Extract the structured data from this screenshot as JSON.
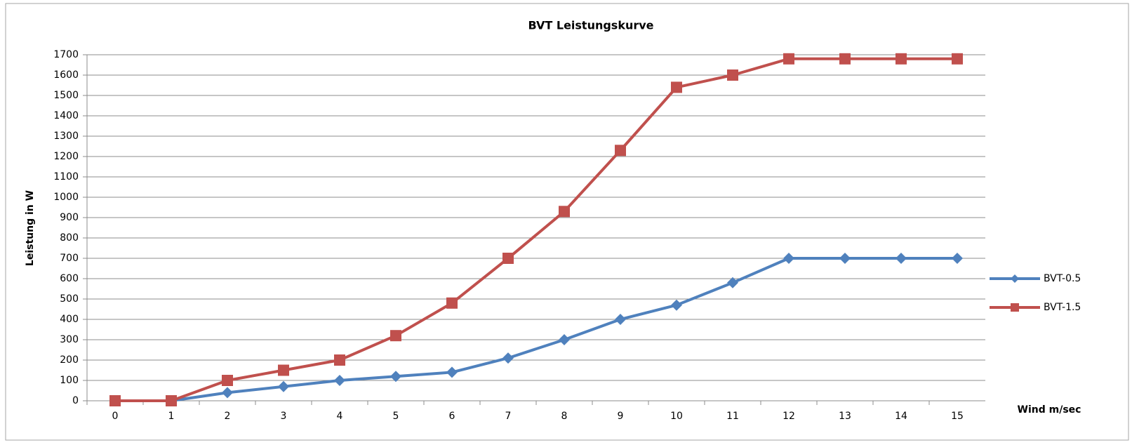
{
  "chart_data": {
    "type": "line",
    "title": "BVT Leistungskurve",
    "ylabel": "Leistung in W",
    "xlabel": "Wind m/sec",
    "categories": [
      "0",
      "1",
      "2",
      "3",
      "4",
      "5",
      "6",
      "7",
      "8",
      "9",
      "10",
      "11",
      "12",
      "13",
      "14",
      "15"
    ],
    "series": [
      {
        "name": "BVT-0.5",
        "color": "#4f81bd",
        "marker": "diamond",
        "values": [
          0,
          0,
          40,
          70,
          100,
          120,
          140,
          210,
          300,
          400,
          470,
          580,
          700,
          700,
          700,
          700
        ]
      },
      {
        "name": "BVT-1.5",
        "color": "#c0504d",
        "marker": "square",
        "values": [
          0,
          0,
          100,
          150,
          200,
          320,
          480,
          700,
          930,
          1230,
          1540,
          1600,
          1680,
          1680,
          1680,
          1680
        ]
      }
    ],
    "ylim": [
      0,
      1700
    ],
    "yticks": [
      0,
      100,
      200,
      300,
      400,
      500,
      600,
      700,
      800,
      900,
      1000,
      1100,
      1200,
      1300,
      1400,
      1500,
      1600,
      1700
    ],
    "grid": true,
    "legend": "right"
  }
}
